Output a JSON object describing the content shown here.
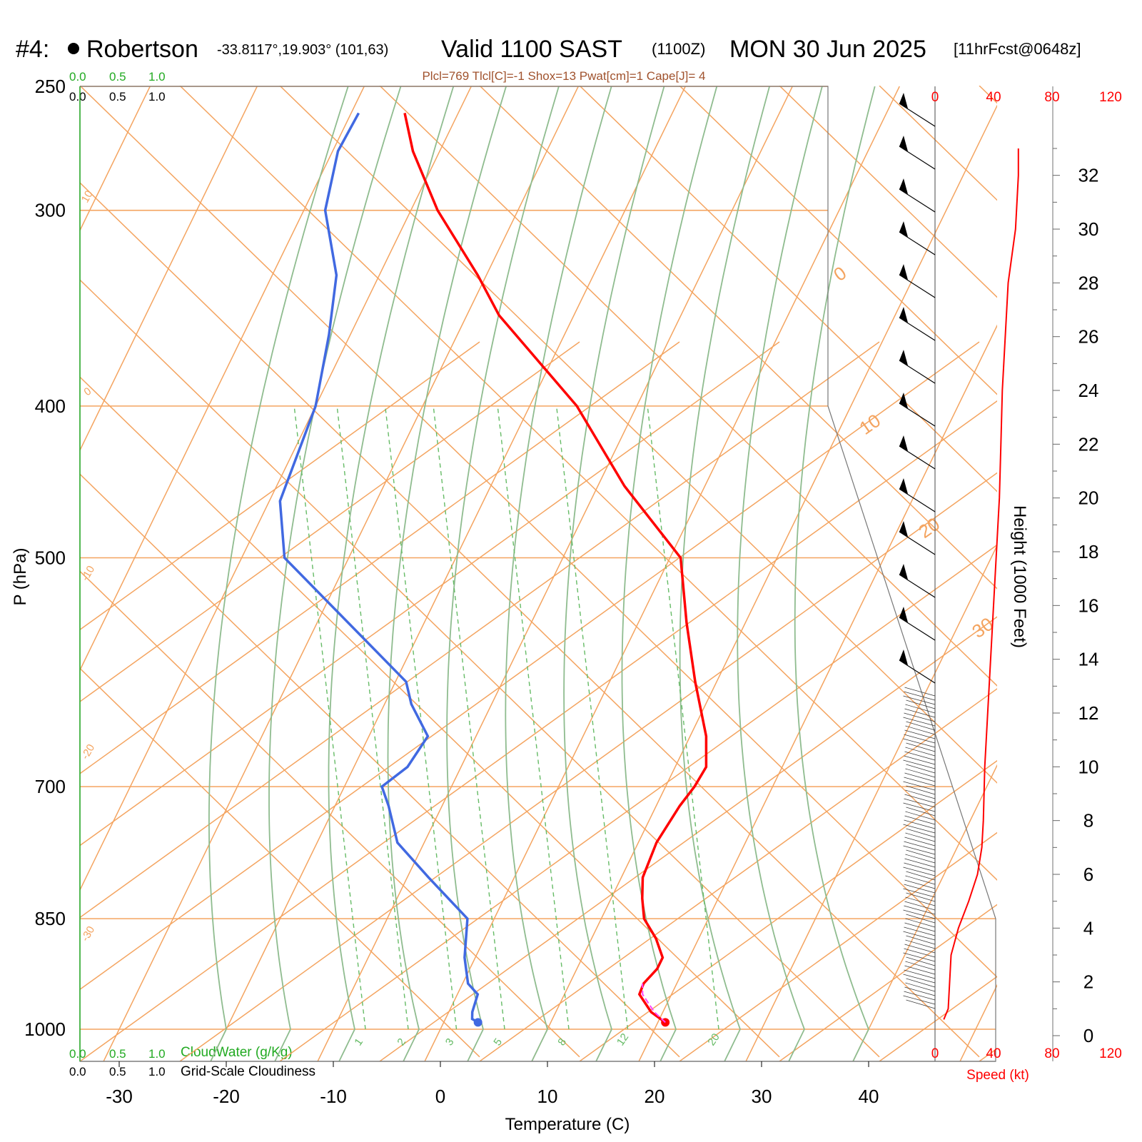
{
  "header": {
    "station_num": "#4:",
    "station_name": "Robertson",
    "coords": "-33.8117°,19.903° (101,63)",
    "valid": "Valid 1100 SAST",
    "zulu": "(1100Z)",
    "date": "MON 30 Jun 2025",
    "fcst": "[11hrFcst@0648z]",
    "indices": "Plcl=769 Tlcl[C]=-1 Shox=13 Pwat[cm]=1 Cape[J]= 4"
  },
  "cloud_scale": {
    "values": [
      "0.0",
      "0.5",
      "1.0"
    ],
    "cloudwater_label": "CloudWater (g/Kg)",
    "cloudiness_label": "Grid-Scale Cloudiness"
  },
  "colors": {
    "temperature": "#ff0000",
    "dewpoint": "#4169e1",
    "isotherm": "#f4a460",
    "moist_adiabat": "#8fbc8f",
    "mixing_ratio": "#66bb66",
    "cloudwater": "#22aa22",
    "wind_speed": "#ff0000"
  },
  "chart_data": {
    "type": "skew-t",
    "xlabel": "Temperature (C)",
    "ylabel": "P (hPa)",
    "y2label": "Height (1000 Feet)",
    "x_ticks": [
      -30,
      -20,
      -10,
      0,
      10,
      20,
      30,
      40
    ],
    "p_ticks": [
      250,
      300,
      400,
      500,
      700,
      850,
      1000
    ],
    "p_range": [
      250,
      1050
    ],
    "height_ticks": [
      0,
      2,
      4,
      6,
      8,
      10,
      12,
      14,
      16,
      18,
      20,
      22,
      24,
      26,
      28,
      30,
      32
    ],
    "isotherm_labels": [
      "10",
      "0",
      "-10",
      "-20",
      "-30",
      "0",
      "10",
      "20",
      "30"
    ],
    "mixing_ratio_labels": [
      "1",
      "2",
      "3",
      "5",
      "8",
      "12",
      "20"
    ],
    "temperature": {
      "p": [
        990,
        975,
        950,
        935,
        915,
        900,
        875,
        850,
        825,
        800,
        760,
        720,
        700,
        680,
        650,
        600,
        550,
        500,
        450,
        400,
        350,
        330,
        300,
        275,
        260
      ],
      "t": [
        20.7,
        18.9,
        17.0,
        16.9,
        17.5,
        17.5,
        16.0,
        14.0,
        12.9,
        12.0,
        11.7,
        12.2,
        12.7,
        12.9,
        11.5,
        8.0,
        4.5,
        1.0,
        -7.5,
        -15.6,
        -27.0,
        -30.8,
        -37.5,
        -42.5,
        -45.0
      ]
    },
    "dewpoint": {
      "p": [
        990,
        985,
        975,
        950,
        935,
        900,
        850,
        800,
        760,
        720,
        700,
        680,
        650,
        620,
        600,
        500,
        460,
        400,
        360,
        330,
        300,
        275,
        260
      ],
      "td": [
        3.2,
        2.5,
        2.2,
        1.9,
        0.5,
        -1.0,
        -2.5,
        -8.0,
        -12.5,
        -15.0,
        -16.5,
        -15.0,
        -14.5,
        -17.5,
        -19.0,
        -36.0,
        -39.0,
        -40.0,
        -42.0,
        -44.0,
        -48.0,
        -49.5,
        -49.3
      ]
    },
    "parcel": {
      "p": [
        990,
        975,
        950,
        935
      ],
      "t": [
        20.7,
        19.2,
        17.3,
        16.8
      ]
    },
    "wind_speed_axis": {
      "label": "Speed (kt)",
      "ticks": [
        0,
        40,
        80,
        120
      ]
    },
    "wind_speed_profile": {
      "height_kft": [
        0.6,
        1.0,
        2.0,
        3.0,
        4.0,
        5.0,
        6.0,
        7.0,
        8.0,
        10.0,
        12.0,
        14.0,
        16.0,
        18.0,
        20.0,
        22.0,
        24.0,
        26.0,
        28.0,
        30.0,
        32.0,
        33.0
      ],
      "speed_kt": [
        6,
        9,
        10,
        11,
        16,
        23,
        29,
        32,
        33,
        34,
        36,
        38,
        40,
        42,
        44,
        45,
        46,
        48,
        50,
        55,
        57,
        57
      ]
    }
  }
}
